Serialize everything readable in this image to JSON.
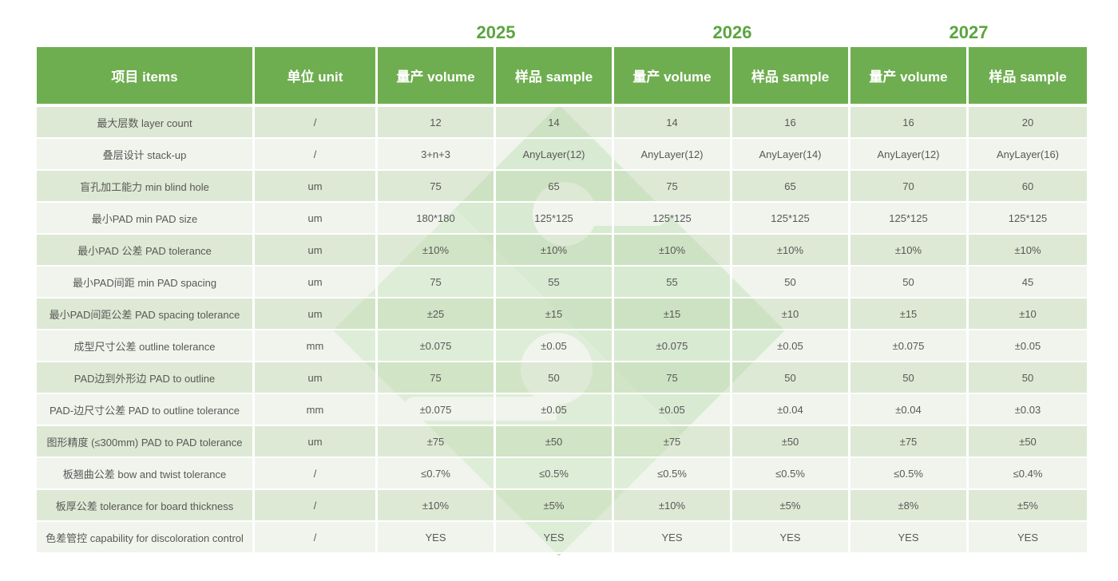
{
  "years": [
    "2025",
    "2026",
    "2027"
  ],
  "header": {
    "cells": [
      "项目 items",
      "单位 unit",
      "量产 volume",
      "样品 sample",
      "量产 volume",
      "样品 sample",
      "量产 volume",
      "样品 sample"
    ]
  },
  "rows": [
    {
      "item": "最大层数 layer count",
      "unit": "/",
      "values": [
        "12",
        "14",
        "14",
        "16",
        "16",
        "20"
      ]
    },
    {
      "item": "叠层设计 stack-up",
      "unit": "/",
      "values": [
        "3+n+3",
        "AnyLayer(12)",
        "AnyLayer(12)",
        "AnyLayer(14)",
        "AnyLayer(12)",
        "AnyLayer(16)"
      ]
    },
    {
      "item": "盲孔加工能力 min blind hole",
      "unit": "um",
      "values": [
        "75",
        "65",
        "75",
        "65",
        "70",
        "60"
      ]
    },
    {
      "item": "最小PAD min PAD size",
      "unit": "um",
      "values": [
        "180*180",
        "125*125",
        "125*125",
        "125*125",
        "125*125",
        "125*125"
      ]
    },
    {
      "item": "最小PAD 公差 PAD tolerance",
      "unit": "um",
      "values": [
        "±10%",
        "±10%",
        "±10%",
        "±10%",
        "±10%",
        "±10%"
      ]
    },
    {
      "item": "最小PAD间距  min PAD spacing",
      "unit": "um",
      "values": [
        "75",
        "55",
        "55",
        "50",
        "50",
        "45"
      ]
    },
    {
      "item": "最小PAD间距公差  PAD spacing  tolerance",
      "unit": "um",
      "values": [
        "±25",
        "±15",
        "±15",
        "±10",
        "±15",
        "±10"
      ]
    },
    {
      "item": "成型尺寸公差 outline tolerance",
      "unit": "mm",
      "values": [
        "±0.075",
        "±0.05",
        "±0.075",
        "±0.05",
        "±0.075",
        "±0.05"
      ]
    },
    {
      "item": "PAD边到外形边 PAD to  outline",
      "unit": "um",
      "values": [
        "75",
        "50",
        "75",
        "50",
        "50",
        "50"
      ]
    },
    {
      "item": "PAD-边尺寸公差 PAD to  outline tolerance",
      "unit": "mm",
      "values": [
        "±0.075",
        "±0.05",
        "±0.05",
        "±0.04",
        "±0.04",
        "±0.03"
      ]
    },
    {
      "item": "图形精度 (≤300mm)  PAD to  PAD tolerance",
      "unit": "um",
      "values": [
        "±75",
        "±50",
        "±75",
        "±50",
        "±75",
        "±50"
      ]
    },
    {
      "item": "板翘曲公差 bow and twist tolerance",
      "unit": "/",
      "values": [
        "≤0.7%",
        "≤0.5%",
        "≤0.5%",
        "≤0.5%",
        "≤0.5%",
        "≤0.4%"
      ]
    },
    {
      "item": "板厚公差  tolerance for board thickness",
      "unit": "/",
      "values": [
        "±10%",
        "±5%",
        "±10%",
        "±5%",
        "±8%",
        "±5%"
      ]
    },
    {
      "item": "色差管控  capability for discoloration  control",
      "unit": "/",
      "values": [
        "YES",
        "YES",
        "YES",
        "YES",
        "YES",
        "YES"
      ]
    }
  ],
  "colors": {
    "header_green": "#6FAE50",
    "year_green": "#5BA53F",
    "row_light": "#DDE9D4",
    "row_lighter": "#F0F4ED",
    "watermark_green": "#C2E6B6",
    "watermark_green_dark": "#B0DCA4",
    "body_text": "#585858"
  }
}
